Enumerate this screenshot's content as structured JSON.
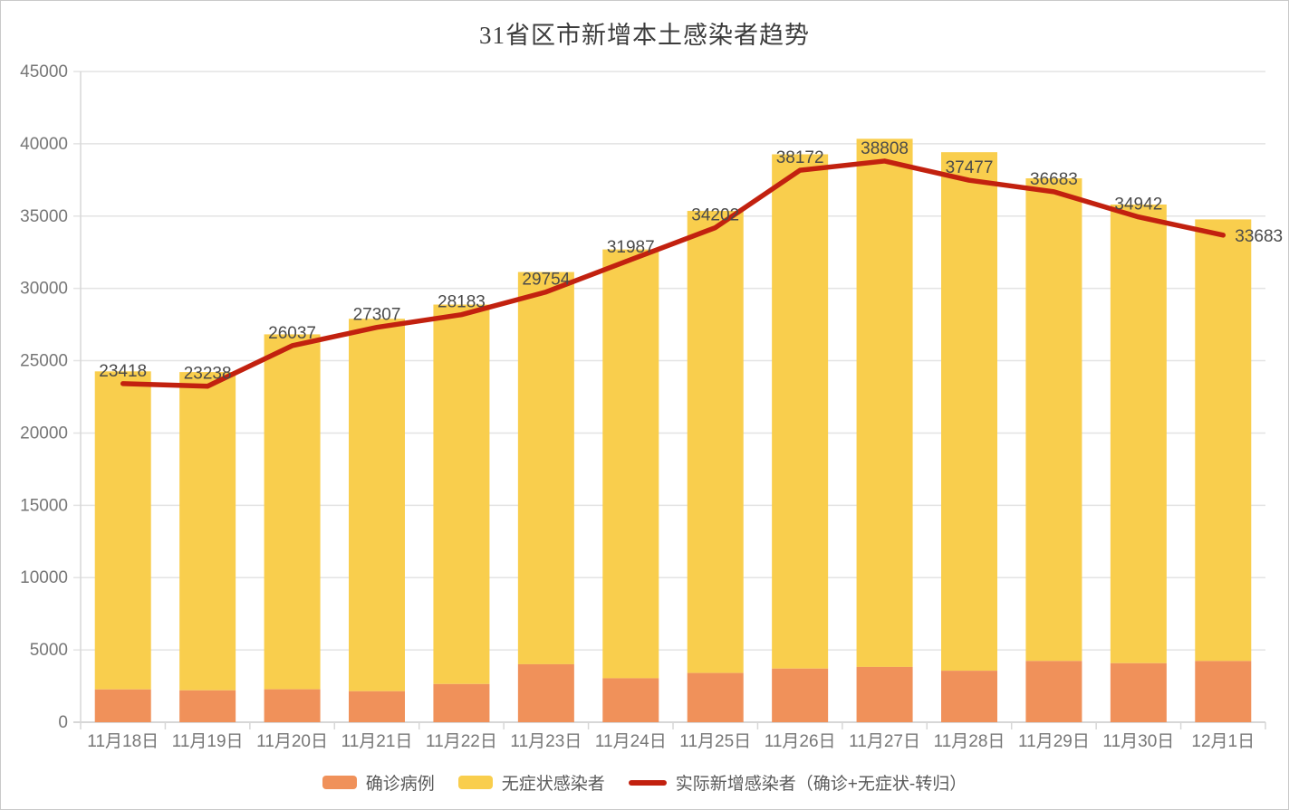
{
  "title": "31省区市新增本土感染者趋势",
  "colors": {
    "confirmed": "#F0915A",
    "asymptomatic": "#F9CE4D",
    "line": "#C2210F",
    "grid": "#E3E3E3",
    "axis": "#D7D7D7",
    "axis_label": "#767676",
    "data_label": "#4A4A4A",
    "title_text": "#3C3C3C",
    "legend_text": "#5A5A5A",
    "background": "#FFFFFF"
  },
  "chart_data": {
    "type": "bar",
    "subtype": "stacked-bar-with-line",
    "title": "31省区市新增本土感染者趋势",
    "categories": [
      "11月18日",
      "11月19日",
      "11月20日",
      "11月21日",
      "11月22日",
      "11月23日",
      "11月24日",
      "11月25日",
      "11月26日",
      "11月27日",
      "11月28日",
      "11月29日",
      "11月30日",
      "12月1日"
    ],
    "series": [
      {
        "name": "确诊病例",
        "type": "bar",
        "stack": true,
        "color": "#F0915A",
        "values": [
          2267,
          2204,
          2277,
          2145,
          2641,
          4010,
          3041,
          3405,
          3709,
          3822,
          3561,
          4236,
          4080,
          4233
        ]
      },
      {
        "name": "无症状感染者",
        "type": "bar",
        "stack": true,
        "color": "#F9CE4D",
        "values": [
          21996,
          22011,
          24547,
          25754,
          26242,
          27123,
          29654,
          31955,
          35565,
          36525,
          35858,
          33376,
          31720,
          30539
        ]
      },
      {
        "name": "实际新增感染者（确诊+无症状-转归）",
        "type": "line",
        "color": "#C2210F",
        "show_labels": true,
        "values": [
          23418,
          23238,
          26037,
          27307,
          28183,
          29754,
          31987,
          34202,
          38172,
          38808,
          37477,
          36683,
          34942,
          33683
        ]
      }
    ],
    "xlabel": "",
    "ylabel": "",
    "ylim": [
      0,
      45000
    ],
    "ytick_step": 5000,
    "yticks": [
      0,
      5000,
      10000,
      15000,
      20000,
      25000,
      30000,
      35000,
      40000,
      45000
    ],
    "grid": true,
    "legend_position": "bottom"
  }
}
